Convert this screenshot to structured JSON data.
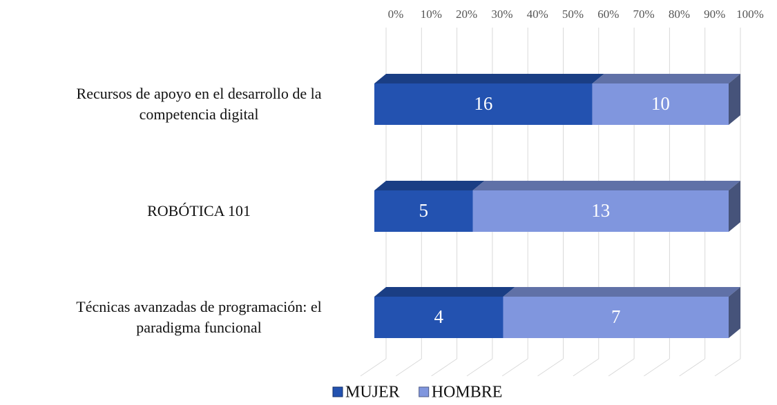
{
  "chart_data": {
    "type": "bar",
    "orientation": "horizontal",
    "stacking": "percent",
    "categories": [
      "Recursos de apoyo en el desarrollo de la competencia digital",
      "ROBÓTICA 101",
      "Técnicas avanzadas de programación: el paradigma funcional"
    ],
    "series": [
      {
        "name": "MUJER",
        "color": "#2352b0",
        "values": [
          16,
          5,
          4
        ]
      },
      {
        "name": "HOMBRE",
        "color": "#8096de",
        "values": [
          10,
          13,
          7
        ]
      }
    ],
    "xlim": [
      0,
      100
    ],
    "xticks": [
      {
        "value": 0,
        "label": "0%"
      },
      {
        "value": 10,
        "label": "10%"
      },
      {
        "value": 20,
        "label": "20%"
      },
      {
        "value": 30,
        "label": "30%"
      },
      {
        "value": 40,
        "label": "40%"
      },
      {
        "value": 50,
        "label": "50%"
      },
      {
        "value": 60,
        "label": "60%"
      },
      {
        "value": 70,
        "label": "70%"
      },
      {
        "value": 80,
        "label": "80%"
      },
      {
        "value": 90,
        "label": "90%"
      },
      {
        "value": 100,
        "label": "100%"
      }
    ],
    "grid": true,
    "legend": "bottom"
  }
}
